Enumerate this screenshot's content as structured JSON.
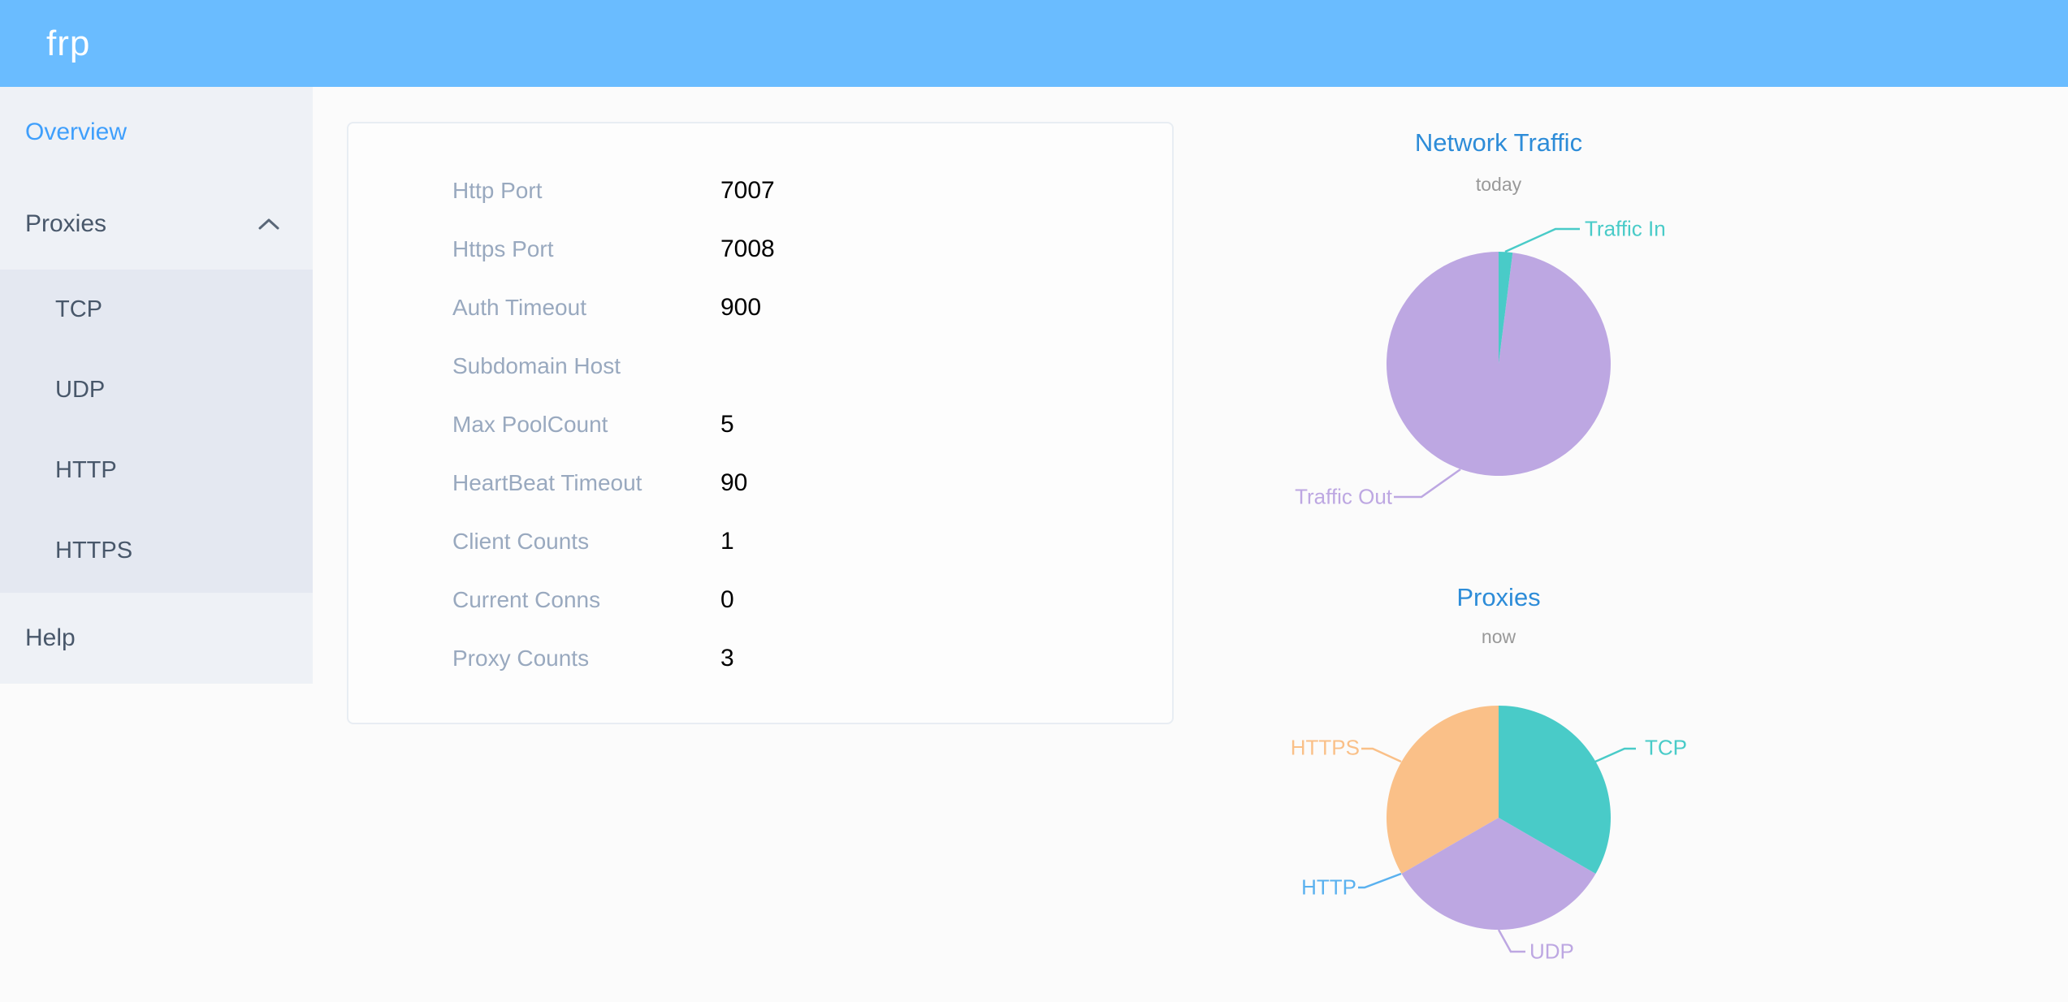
{
  "header": {
    "logo": "frp"
  },
  "sidebar": {
    "items": [
      {
        "label": "Overview",
        "active": true
      },
      {
        "label": "Proxies",
        "expanded": true,
        "children": [
          "TCP",
          "UDP",
          "HTTP",
          "HTTPS"
        ]
      },
      {
        "label": "Help"
      }
    ]
  },
  "overview_card": {
    "rows": [
      {
        "label": "Http Port",
        "value": "7007"
      },
      {
        "label": "Https Port",
        "value": "7008"
      },
      {
        "label": "Auth Timeout",
        "value": "900"
      },
      {
        "label": "Subdomain Host",
        "value": ""
      },
      {
        "label": "Max PoolCount",
        "value": "5"
      },
      {
        "label": "HeartBeat Timeout",
        "value": "90"
      },
      {
        "label": "Client Counts",
        "value": "1"
      },
      {
        "label": "Current Conns",
        "value": "0"
      },
      {
        "label": "Proxy Counts",
        "value": "3"
      }
    ]
  },
  "chart_data": [
    {
      "type": "pie",
      "title": "Network Traffic",
      "subtitle": "today",
      "categories": [
        "Traffic In",
        "Traffic Out"
      ],
      "values": [
        2,
        98
      ],
      "values_are": "estimated percent of circle read from slice angles (no numeric labels shown)",
      "colors": [
        "#49cbc8",
        "#bda7e2"
      ],
      "legend_position": "callout-labels"
    },
    {
      "type": "pie",
      "title": "Proxies",
      "subtitle": "now",
      "categories": [
        "TCP",
        "UDP",
        "HTTP",
        "HTTPS"
      ],
      "values": [
        1,
        1,
        0,
        1
      ],
      "colors": [
        "#49cbc8",
        "#bda7e2",
        "#5ab1ef",
        "#fac088"
      ],
      "legend_position": "callout-labels"
    }
  ],
  "theme": {
    "header_bg": "#6abcff",
    "sidebar_bg": "#eef1f6",
    "submenu_bg": "#e4e8f1",
    "active_item_color": "#3f9ffc",
    "menu_text_color": "#48576a",
    "card_label_color": "#99a9bf",
    "chart_title_color": "#2d8cd8"
  }
}
